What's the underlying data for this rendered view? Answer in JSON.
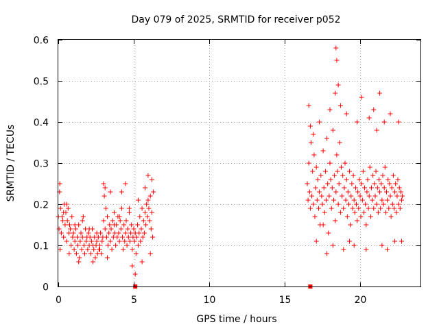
{
  "chart_data": {
    "type": "scatter",
    "title": "Day 079 of 2025, SRMTID for receiver p052",
    "xlabel": "GPS time / hours",
    "ylabel": "SRMTID / TECUs",
    "xlim": [
      0,
      24
    ],
    "ylim": [
      0,
      0.6
    ],
    "xticks": [
      0,
      5,
      10,
      15,
      20
    ],
    "xtick_labels": [
      "0",
      "5",
      "10",
      "15",
      "20"
    ],
    "yticks": [
      0,
      0.1,
      0.2,
      0.3,
      0.4,
      0.5,
      0.6
    ],
    "ytick_labels": [
      "0",
      "0.1",
      "0.2",
      "0.3",
      "0.4",
      "0.5",
      "0.6"
    ],
    "grid": true,
    "marker": "+",
    "color": "#ff0000",
    "series": [
      {
        "name": "SRMTID",
        "x": [
          0.0,
          0.05,
          0.1,
          0.15,
          0.2,
          0.25,
          0.3,
          0.35,
          0.4,
          0.45,
          0.5,
          0.55,
          0.6,
          0.65,
          0.7,
          0.75,
          0.8,
          0.85,
          0.9,
          0.95,
          1.0,
          1.05,
          1.1,
          1.15,
          1.2,
          1.25,
          1.3,
          1.35,
          1.4,
          1.45,
          1.5,
          1.55,
          1.6,
          1.65,
          1.7,
          1.75,
          1.8,
          1.85,
          1.9,
          1.95,
          2.0,
          2.05,
          2.1,
          2.15,
          2.2,
          2.25,
          2.3,
          2.35,
          2.4,
          2.45,
          2.5,
          2.55,
          2.6,
          2.65,
          2.7,
          2.75,
          2.8,
          2.85,
          2.9,
          2.95,
          3.0,
          3.05,
          3.1,
          3.15,
          3.2,
          3.25,
          3.3,
          3.35,
          3.4,
          3.45,
          3.5,
          3.55,
          3.6,
          3.65,
          3.7,
          3.75,
          3.8,
          3.85,
          3.9,
          3.95,
          4.0,
          4.05,
          4.1,
          4.15,
          4.2,
          4.25,
          4.3,
          4.35,
          4.4,
          4.45,
          4.5,
          4.55,
          4.6,
          4.65,
          4.7,
          4.75,
          4.8,
          4.85,
          4.9,
          4.95,
          5.0,
          5.05,
          5.1,
          5.15,
          5.2,
          5.25,
          5.3,
          5.35,
          5.4,
          5.45,
          5.5,
          5.55,
          5.6,
          5.65,
          5.7,
          5.75,
          5.8,
          5.85,
          5.9,
          5.95,
          6.0,
          6.05,
          6.1,
          6.15,
          6.2,
          6.25,
          6.3,
          0.08,
          0.12,
          0.35,
          0.55,
          0.72,
          1.1,
          1.35,
          1.6,
          2.05,
          2.3,
          2.55,
          2.75,
          3.0,
          3.1,
          3.25,
          3.45,
          3.7,
          4.05,
          4.2,
          4.45,
          4.7,
          4.9,
          5.1,
          5.3,
          5.55,
          5.75,
          5.95,
          6.1,
          6.2,
          16.5,
          16.55,
          16.6,
          16.65,
          16.7,
          16.75,
          16.8,
          16.85,
          16.9,
          16.95,
          17.0,
          17.05,
          17.1,
          17.15,
          17.2,
          17.25,
          17.3,
          17.35,
          17.4,
          17.45,
          17.5,
          17.55,
          17.6,
          17.65,
          17.7,
          17.75,
          17.8,
          17.85,
          17.9,
          17.95,
          18.0,
          18.05,
          18.1,
          18.15,
          18.2,
          18.25,
          18.3,
          18.35,
          18.4,
          18.45,
          18.5,
          18.55,
          18.6,
          18.65,
          18.7,
          18.75,
          18.8,
          18.85,
          18.9,
          18.95,
          19.0,
          19.05,
          19.1,
          19.15,
          19.2,
          19.25,
          19.3,
          19.35,
          19.4,
          19.45,
          19.5,
          19.55,
          19.6,
          19.65,
          19.7,
          19.75,
          19.8,
          19.85,
          19.9,
          19.95,
          20.0,
          20.05,
          20.1,
          20.15,
          20.2,
          20.25,
          20.3,
          20.35,
          20.4,
          20.45,
          20.5,
          20.55,
          20.6,
          20.65,
          20.7,
          20.75,
          20.8,
          20.85,
          20.9,
          20.95,
          21.0,
          21.05,
          21.1,
          21.15,
          21.2,
          21.25,
          21.3,
          21.35,
          21.4,
          21.45,
          21.5,
          21.55,
          21.6,
          21.65,
          21.7,
          21.75,
          21.8,
          21.85,
          21.9,
          21.95,
          22.0,
          22.05,
          22.1,
          22.15,
          22.2,
          22.25,
          22.3,
          22.35,
          22.4,
          22.45,
          22.5,
          22.55,
          22.6,
          22.65,
          22.7,
          22.75,
          22.8,
          16.6,
          16.7,
          16.9,
          17.1,
          17.3,
          17.55,
          17.8,
          18.0,
          18.2,
          18.35,
          18.4,
          18.45,
          18.55,
          18.7,
          18.9,
          19.1,
          19.3,
          19.6,
          19.8,
          20.1,
          20.4,
          20.6,
          20.9,
          21.1,
          21.3,
          21.45,
          21.6,
          21.8,
          22.0,
          22.3,
          22.55,
          22.75
        ],
        "y": [
          0.17,
          0.14,
          0.25,
          0.19,
          0.13,
          0.17,
          0.16,
          0.12,
          0.2,
          0.15,
          0.18,
          0.11,
          0.16,
          0.19,
          0.13,
          0.15,
          0.14,
          0.1,
          0.17,
          0.12,
          0.13,
          0.09,
          0.11,
          0.14,
          0.08,
          0.12,
          0.1,
          0.15,
          0.07,
          0.11,
          0.13,
          0.09,
          0.12,
          0.17,
          0.1,
          0.08,
          0.14,
          0.11,
          0.12,
          0.09,
          0.13,
          0.1,
          0.12,
          0.08,
          0.11,
          0.14,
          0.1,
          0.09,
          0.12,
          0.07,
          0.1,
          0.11,
          0.08,
          0.12,
          0.09,
          0.1,
          0.13,
          0.08,
          0.11,
          0.12,
          0.16,
          0.22,
          0.14,
          0.19,
          0.12,
          0.17,
          0.1,
          0.13,
          0.15,
          0.11,
          0.14,
          0.09,
          0.16,
          0.12,
          0.18,
          0.13,
          0.1,
          0.15,
          0.12,
          0.17,
          0.13,
          0.11,
          0.16,
          0.14,
          0.19,
          0.12,
          0.09,
          0.15,
          0.11,
          0.13,
          0.16,
          0.1,
          0.14,
          0.12,
          0.18,
          0.11,
          0.13,
          0.15,
          0.09,
          0.12,
          0.14,
          0.11,
          0.13,
          0.08,
          0.12,
          0.15,
          0.1,
          0.13,
          0.17,
          0.11,
          0.14,
          0.19,
          0.12,
          0.16,
          0.13,
          0.18,
          0.15,
          0.2,
          0.17,
          0.21,
          0.19,
          0.16,
          0.22,
          0.14,
          0.18,
          0.12,
          0.23,
          0.23,
          0.09,
          0.18,
          0.2,
          0.08,
          0.15,
          0.06,
          0.16,
          0.14,
          0.06,
          0.13,
          0.09,
          0.25,
          0.24,
          0.07,
          0.23,
          0.15,
          0.17,
          0.23,
          0.25,
          0.19,
          0.05,
          0.03,
          0.21,
          0.06,
          0.24,
          0.27,
          0.08,
          0.26,
          0.25,
          0.21,
          0.3,
          0.23,
          0.19,
          0.35,
          0.22,
          0.28,
          0.2,
          0.32,
          0.17,
          0.24,
          0.29,
          0.21,
          0.26,
          0.19,
          0.23,
          0.15,
          0.27,
          0.22,
          0.2,
          0.33,
          0.24,
          0.18,
          0.28,
          0.21,
          0.36,
          0.25,
          0.13,
          0.22,
          0.3,
          0.26,
          0.19,
          0.24,
          0.38,
          0.21,
          0.27,
          0.16,
          0.23,
          0.32,
          0.28,
          0.2,
          0.25,
          0.35,
          0.18,
          0.29,
          0.22,
          0.27,
          0.19,
          0.24,
          0.3,
          0.21,
          0.26,
          0.17,
          0.23,
          0.2,
          0.28,
          0.15,
          0.22,
          0.25,
          0.19,
          0.27,
          0.21,
          0.18,
          0.24,
          0.2,
          0.16,
          0.23,
          0.19,
          0.26,
          0.22,
          0.17,
          0.25,
          0.21,
          0.28,
          0.18,
          0.24,
          0.2,
          0.15,
          0.23,
          0.26,
          0.19,
          0.22,
          0.29,
          0.17,
          0.24,
          0.21,
          0.27,
          0.19,
          0.25,
          0.22,
          0.28,
          0.2,
          0.24,
          0.18,
          0.26,
          0.23,
          0.19,
          0.25,
          0.21,
          0.27,
          0.2,
          0.24,
          0.29,
          0.18,
          0.23,
          0.21,
          0.26,
          0.19,
          0.25,
          0.22,
          0.17,
          0.24,
          0.2,
          0.27,
          0.19,
          0.23,
          0.25,
          0.18,
          0.22,
          0.26,
          0.2,
          0.24,
          0.19,
          0.23,
          0.21,
          0.22,
          0.44,
          0.39,
          0.37,
          0.11,
          0.4,
          0.15,
          0.08,
          0.43,
          0.1,
          0.47,
          0.58,
          0.55,
          0.49,
          0.44,
          0.09,
          0.42,
          0.11,
          0.1,
          0.4,
          0.46,
          0.09,
          0.41,
          0.43,
          0.38,
          0.47,
          0.1,
          0.4,
          0.09,
          0.42,
          0.11,
          0.4,
          0.11
        ]
      }
    ],
    "zero_markers_x": [
      5.1,
      16.7
    ]
  }
}
